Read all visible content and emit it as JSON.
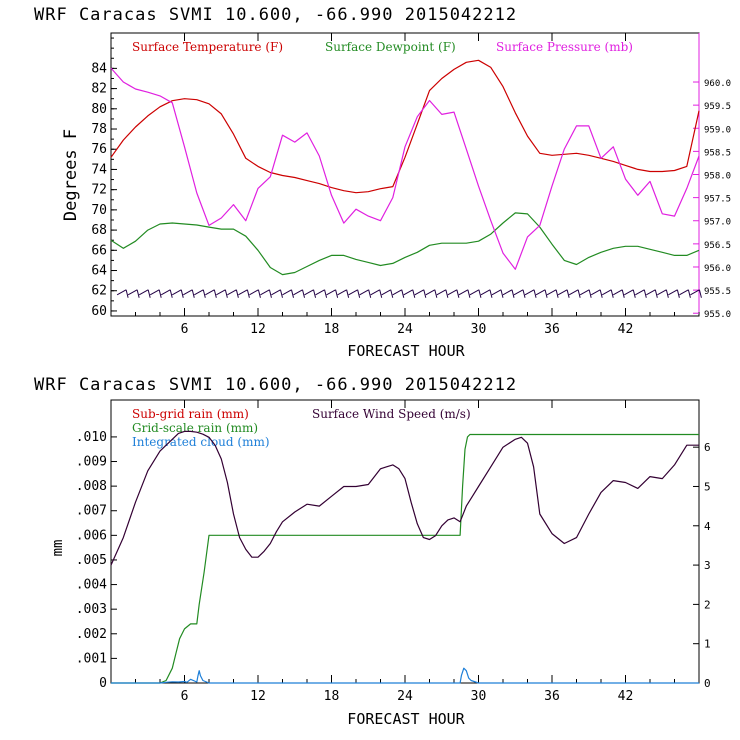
{
  "chart_data": [
    {
      "type": "line",
      "title": "WRF   Caracas SVMI  10.600, -66.990  2015042212",
      "xlabel": "FORECAST HOUR",
      "ylabel": "Degrees F",
      "xlim": [
        0,
        48
      ],
      "ylim": [
        59.5,
        87.5
      ],
      "y2lim": [
        954.94,
        961.06
      ],
      "yticks": [
        "60",
        "62",
        "64",
        "66",
        "68",
        "70",
        "72",
        "74",
        "76",
        "78",
        "80",
        "82",
        "84"
      ],
      "xticks": [
        "6",
        "12",
        "18",
        "24",
        "30",
        "36",
        "42"
      ],
      "y2ticks": [
        "955.0",
        "955.5",
        "956.0",
        "956.5",
        "957.0",
        "957.5",
        "958.0",
        "958.5",
        "959.0",
        "959.5",
        "960.0"
      ],
      "legend": [
        "Surface Temperature (F)",
        "Surface Dewpoint (F)",
        "Surface Pressure (mb)"
      ],
      "colors": {
        "temperature": "#cc0000",
        "dewpoint": "#228b22",
        "pressure": "#e020e0",
        "barbs": "#220044",
        "right_axis": "#e020e0"
      },
      "series": [
        {
          "name": "Surface Temperature (F)",
          "axis": "left",
          "color": "#cc0000",
          "x": [
            0,
            1,
            2,
            3,
            4,
            5,
            6,
            7,
            8,
            9,
            10,
            11,
            12,
            13,
            14,
            15,
            16,
            17,
            18,
            19,
            20,
            21,
            22,
            23,
            24,
            25,
            26,
            27,
            28,
            29,
            30,
            31,
            32,
            33,
            34,
            35,
            36,
            37,
            38,
            39,
            40,
            41,
            42,
            43,
            44,
            45,
            46,
            47,
            48
          ],
          "values": [
            75.2,
            76.9,
            78.2,
            79.3,
            80.2,
            80.8,
            81.0,
            80.9,
            80.5,
            79.5,
            77.5,
            75.1,
            74.3,
            73.7,
            73.4,
            73.2,
            72.9,
            72.6,
            72.2,
            71.9,
            71.7,
            71.8,
            72.1,
            72.3,
            75.2,
            78.5,
            81.8,
            83.0,
            83.9,
            84.6,
            84.8,
            84.1,
            82.2,
            79.6,
            77.3,
            75.6,
            75.4,
            75.5,
            75.6,
            75.4,
            75.1,
            74.8,
            74.4,
            74.0,
            73.8,
            73.8,
            73.9,
            74.3,
            79.8
          ]
        },
        {
          "name": "Surface Dewpoint (F)",
          "axis": "left",
          "color": "#228b22",
          "x": [
            0,
            1,
            2,
            3,
            4,
            5,
            6,
            7,
            8,
            9,
            10,
            11,
            12,
            13,
            14,
            15,
            16,
            17,
            18,
            19,
            20,
            21,
            22,
            23,
            24,
            25,
            26,
            27,
            28,
            29,
            30,
            31,
            32,
            33,
            34,
            35,
            36,
            37,
            38,
            39,
            40,
            41,
            42,
            43,
            44,
            45,
            46,
            47,
            48
          ],
          "values": [
            67.0,
            66.2,
            66.9,
            68.0,
            68.6,
            68.7,
            68.6,
            68.5,
            68.3,
            68.1,
            68.1,
            67.4,
            66.0,
            64.3,
            63.6,
            63.8,
            64.4,
            65.0,
            65.5,
            65.5,
            65.1,
            64.8,
            64.5,
            64.7,
            65.3,
            65.8,
            66.5,
            66.7,
            66.7,
            66.7,
            66.9,
            67.6,
            68.7,
            69.7,
            69.6,
            68.3,
            66.6,
            65.0,
            64.6,
            65.3,
            65.8,
            66.2,
            66.4,
            66.4,
            66.1,
            65.8,
            65.5,
            65.5,
            66.0
          ]
        },
        {
          "name": "Surface Pressure (mb)",
          "axis": "right",
          "color": "#e020e0",
          "x": [
            0,
            1,
            2,
            3,
            4,
            5,
            6,
            7,
            8,
            9,
            10,
            11,
            12,
            13,
            14,
            15,
            16,
            17,
            18,
            19,
            20,
            21,
            22,
            23,
            24,
            25,
            26,
            27,
            28,
            29,
            30,
            31,
            32,
            33,
            34,
            35,
            36,
            37,
            38,
            39,
            40,
            41,
            42,
            43,
            44,
            45,
            46,
            47,
            48
          ],
          "values": [
            960.3,
            960.0,
            959.85,
            959.78,
            959.7,
            959.55,
            958.6,
            957.6,
            956.9,
            957.06,
            957.35,
            957.0,
            957.7,
            957.95,
            958.85,
            958.7,
            958.9,
            958.4,
            957.55,
            956.95,
            957.25,
            957.1,
            957.0,
            957.5,
            958.6,
            959.25,
            959.6,
            959.3,
            959.35,
            958.55,
            957.75,
            957.0,
            956.3,
            955.95,
            956.65,
            956.9,
            957.75,
            958.55,
            959.05,
            959.05,
            958.35,
            958.6,
            957.9,
            957.55,
            957.85,
            957.15,
            957.1,
            957.7,
            958.4
          ]
        }
      ],
      "wind_barbs": {
        "x_start": 0.5,
        "x_end": 47.8,
        "spacing": 0.9,
        "y": 61.6
      }
    },
    {
      "type": "line",
      "title": "WRF   Caracas SVMI  10.600, -66.990  2015042212",
      "xlabel": "FORECAST HOUR",
      "ylabel": "mm",
      "xlim": [
        0,
        48
      ],
      "ylim": [
        0,
        0.0115
      ],
      "y2lim": [
        0,
        7.2
      ],
      "yticks": [
        "0",
        ".001",
        ".002",
        ".003",
        ".004",
        ".005",
        ".006",
        ".007",
        ".008",
        ".009",
        ".010"
      ],
      "xticks": [
        "6",
        "12",
        "18",
        "24",
        "30",
        "36",
        "42"
      ],
      "y2ticks": [
        "0",
        "1",
        "2",
        "3",
        "4",
        "5",
        "6"
      ],
      "legend": [
        "Sub-grid rain (mm)",
        "Surface Wind Speed (m/s)",
        "Grid-scale rain (mm)",
        "Integrated cloud (mm)"
      ],
      "colors": {
        "subgrid": "#cc0000",
        "wind": "#330033",
        "gridscale": "#228b22",
        "cloud": "#1e7fd8"
      },
      "series": [
        {
          "name": "Grid-scale rain (mm)",
          "axis": "left",
          "color": "#228b22",
          "x": [
            0,
            4,
            4.5,
            5,
            5.3,
            5.6,
            6,
            6.5,
            7,
            7.2,
            7.6,
            8,
            10,
            20,
            28.5,
            28.7,
            28.9,
            29.1,
            29.3,
            30,
            40,
            48
          ],
          "values": [
            0,
            0,
            0.0001,
            0.0006,
            0.0012,
            0.0018,
            0.0022,
            0.0024,
            0.0024,
            0.0032,
            0.0045,
            0.006,
            0.006,
            0.006,
            0.006,
            0.008,
            0.0095,
            0.01,
            0.0101,
            0.0101,
            0.0101,
            0.0101
          ]
        },
        {
          "name": "Surface Wind Speed (m/s)",
          "axis": "right",
          "color": "#330033",
          "x": [
            0,
            1,
            2,
            3,
            4,
            5,
            5.5,
            6,
            6.5,
            7,
            7.5,
            8,
            8.5,
            9,
            9.5,
            10,
            10.5,
            11,
            11.5,
            12,
            12.5,
            13,
            13.5,
            14,
            15,
            16,
            17,
            18,
            19,
            20,
            21,
            22,
            22.5,
            23,
            23.5,
            24,
            24.5,
            25,
            25.5,
            26,
            26.5,
            27,
            27.5,
            28,
            28.5,
            29,
            29.5,
            30,
            31,
            32,
            33,
            33.5,
            34,
            34.5,
            35,
            36,
            37,
            38,
            39,
            40,
            41,
            42,
            43,
            44,
            45,
            46,
            47,
            48
          ],
          "values": [
            3.0,
            3.7,
            4.6,
            5.4,
            5.9,
            6.2,
            6.35,
            6.4,
            6.4,
            6.38,
            6.33,
            6.25,
            6.05,
            5.7,
            5.1,
            4.3,
            3.7,
            3.4,
            3.2,
            3.2,
            3.35,
            3.55,
            3.85,
            4.1,
            4.35,
            4.55,
            4.5,
            4.75,
            5.0,
            5.0,
            5.05,
            5.45,
            5.5,
            5.55,
            5.45,
            5.2,
            4.6,
            4.05,
            3.7,
            3.65,
            3.75,
            4.0,
            4.15,
            4.2,
            4.1,
            4.5,
            4.75,
            5.0,
            5.5,
            6.0,
            6.2,
            6.25,
            6.1,
            5.5,
            4.3,
            3.8,
            3.55,
            3.7,
            4.3,
            4.85,
            5.15,
            5.1,
            4.95,
            5.25,
            5.2,
            5.55,
            6.05,
            6.05
          ]
        },
        {
          "name": "Integrated cloud (mm)",
          "axis": "left",
          "color": "#1e7fd8",
          "x": [
            0,
            4,
            4.5,
            5,
            5.5,
            6,
            6.2,
            6.5,
            7,
            7.1,
            7.2,
            7.3,
            7.5,
            8,
            28.5,
            28.6,
            28.8,
            29,
            29.2,
            29.4,
            30,
            48
          ],
          "values": [
            0,
            0,
            3e-05,
            5e-05,
            4e-05,
            6e-05,
            3e-05,
            0.00015,
            4e-05,
            0.0003,
            0.0005,
            0.0003,
            0.0001,
            0,
            0,
            0.0003,
            0.0006,
            0.0005,
            0.0002,
            0.0001,
            0,
            0
          ]
        }
      ]
    }
  ]
}
